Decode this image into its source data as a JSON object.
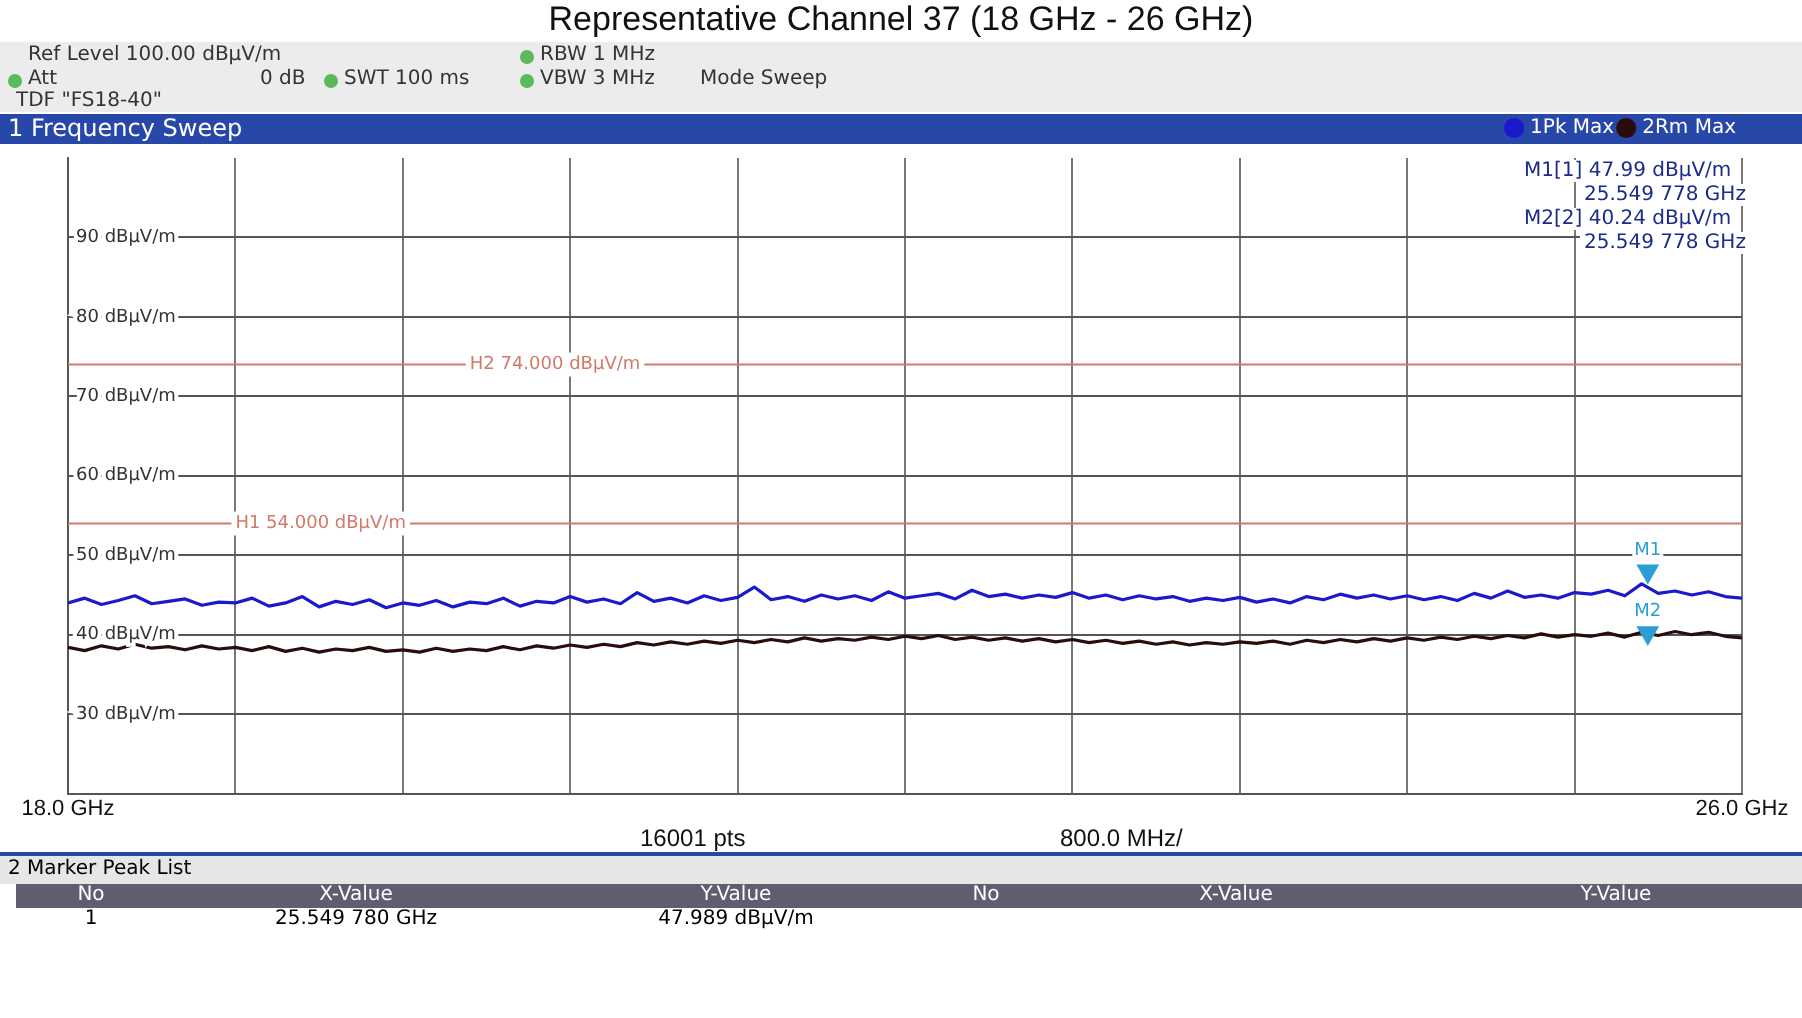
{
  "chart_data": {
    "type": "line",
    "title": "Representative Channel 37 (18 GHz - 26 GHz)",
    "subtitle": "1 Frequency Sweep",
    "x": [
      18,
      18.08,
      18.16,
      18.24,
      18.32,
      18.4,
      18.48,
      18.56,
      18.64,
      18.72,
      18.8,
      18.88,
      18.96,
      19.04,
      19.12,
      19.2,
      19.28,
      19.36,
      19.44,
      19.52,
      19.6,
      19.68,
      19.76,
      19.84,
      19.92,
      20,
      20.08,
      20.16,
      20.24,
      20.32,
      20.4,
      20.48,
      20.56,
      20.64,
      20.72,
      20.8,
      20.88,
      20.96,
      21.04,
      21.12,
      21.2,
      21.28,
      21.36,
      21.44,
      21.52,
      21.6,
      21.68,
      21.76,
      21.84,
      21.92,
      22,
      22.08,
      22.16,
      22.24,
      22.32,
      22.4,
      22.48,
      22.56,
      22.64,
      22.72,
      22.8,
      22.88,
      22.96,
      23.04,
      23.12,
      23.2,
      23.28,
      23.36,
      23.44,
      23.52,
      23.6,
      23.68,
      23.76,
      23.84,
      23.92,
      24,
      24.08,
      24.16,
      24.24,
      24.32,
      24.4,
      24.48,
      24.56,
      24.64,
      24.72,
      24.8,
      24.88,
      24.96,
      25.04,
      25.12,
      25.2,
      25.28,
      25.36,
      25.44,
      25.52,
      25.6,
      25.68,
      25.76,
      25.84,
      25.92,
      26
    ],
    "series": [
      {
        "name": "1Pk Max",
        "color": "#1a1acc",
        "values": [
          44.0,
          44.6,
          43.8,
          44.3,
          44.9,
          43.9,
          44.2,
          44.5,
          43.7,
          44.1,
          44.0,
          44.6,
          43.6,
          44.0,
          44.8,
          43.5,
          44.2,
          43.8,
          44.4,
          43.4,
          44.0,
          43.7,
          44.3,
          43.5,
          44.1,
          43.9,
          44.6,
          43.6,
          44.2,
          44.0,
          44.8,
          44.1,
          44.5,
          43.9,
          45.3,
          44.2,
          44.6,
          44.0,
          44.9,
          44.3,
          44.7,
          46.0,
          44.4,
          44.8,
          44.2,
          45.0,
          44.5,
          44.9,
          44.3,
          45.4,
          44.6,
          44.9,
          45.2,
          44.5,
          45.6,
          44.8,
          45.1,
          44.6,
          45.0,
          44.7,
          45.3,
          44.6,
          45.0,
          44.4,
          44.9,
          44.5,
          44.8,
          44.2,
          44.6,
          44.3,
          44.7,
          44.1,
          44.5,
          44.0,
          44.8,
          44.4,
          45.1,
          44.6,
          45.0,
          44.5,
          44.9,
          44.4,
          44.8,
          44.3,
          45.2,
          44.6,
          45.5,
          44.7,
          45.0,
          44.6,
          45.3,
          45.1,
          45.6,
          44.9,
          46.4,
          45.2,
          45.5,
          45.0,
          45.4,
          44.8,
          44.6
        ]
      },
      {
        "name": "M1",
        "type": "scatter",
        "marker": "triangle",
        "color": "#2a9fd6",
        "x": [
          25.549778
        ],
        "values": [
          47.99
        ]
      },
      {
        "name": "M2",
        "type": "scatter",
        "marker": "triangle",
        "color": "#2a9fd6",
        "x": [
          25.549778
        ],
        "values": [
          40.24
        ]
      },
      {
        "name": "2Rm Max",
        "color": "#2a0c0c",
        "values": [
          38.4,
          38.0,
          38.6,
          38.2,
          38.8,
          38.3,
          38.5,
          38.1,
          38.6,
          38.2,
          38.4,
          38.0,
          38.5,
          37.9,
          38.3,
          37.8,
          38.2,
          38.0,
          38.4,
          37.9,
          38.1,
          37.8,
          38.3,
          37.9,
          38.2,
          38.0,
          38.5,
          38.1,
          38.6,
          38.3,
          38.7,
          38.4,
          38.8,
          38.5,
          39.0,
          38.7,
          39.1,
          38.8,
          39.2,
          38.9,
          39.3,
          39.0,
          39.4,
          39.1,
          39.6,
          39.2,
          39.5,
          39.3,
          39.7,
          39.4,
          39.8,
          39.5,
          39.9,
          39.4,
          39.7,
          39.3,
          39.6,
          39.2,
          39.5,
          39.1,
          39.4,
          39.0,
          39.3,
          38.9,
          39.2,
          38.8,
          39.1,
          38.7,
          39.0,
          38.8,
          39.1,
          38.9,
          39.2,
          38.8,
          39.3,
          39.0,
          39.4,
          39.1,
          39.5,
          39.2,
          39.6,
          39.3,
          39.7,
          39.4,
          39.8,
          39.5,
          39.9,
          39.6,
          40.1,
          39.7,
          40.0,
          39.8,
          40.2,
          39.7,
          40.3,
          39.9,
          40.4,
          40.0,
          40.3,
          39.8,
          39.6
        ]
      }
    ],
    "xlim": [
      18,
      26
    ],
    "xticks": [
      {
        "value": 18,
        "label": "18.0 GHz"
      },
      {
        "value": 18.8,
        "label": null
      },
      {
        "value": 19.6,
        "label": null
      },
      {
        "value": 20.4,
        "label": null
      },
      {
        "value": 21.2,
        "label": null
      },
      {
        "value": 22,
        "label": null
      },
      {
        "value": 22.8,
        "label": null
      },
      {
        "value": 23.6,
        "label": null
      },
      {
        "value": 24.4,
        "label": null
      },
      {
        "value": 25.2,
        "label": null
      },
      {
        "value": 26,
        "label": "26.0 GHz"
      }
    ],
    "ylim": [
      20,
      100
    ],
    "yticks": [
      {
        "value": 30,
        "label": "30 dBµV/m"
      },
      {
        "value": 40,
        "label": "40 dBµV/m"
      },
      {
        "value": 50,
        "label": "50 dBµV/m"
      },
      {
        "value": 60,
        "label": "60 dBµV/m"
      },
      {
        "value": 70,
        "label": "70 dBµV/m"
      },
      {
        "value": 80,
        "label": "80 dBµV/m"
      },
      {
        "value": 90,
        "label": "90 dBµV/m"
      }
    ],
    "ref_lines": [
      {
        "axis": "y",
        "value": 54,
        "label": "H1 54.000 dBµV/m",
        "color": "#d07a6a"
      },
      {
        "axis": "y",
        "value": 74,
        "label": "H2 74.000 dBµV/m",
        "color": "#d07a6a"
      }
    ],
    "annotations": [
      "Ref Level 100.00 dBµV/m",
      "RBW 1 MHz",
      "Att",
      "0 dB",
      "SWT 100 ms",
      "VBW 3 MHz",
      "Mode Sweep",
      "TDF \"FS18-40\"",
      "16001 pts",
      "800.0 MHz/",
      "M1[1]  47.99 dBµV/m",
      "25.549 778 GHz",
      "M2[2]  40.24 dBµV/m",
      "25.549 778 GHz",
      "2 Marker Peak List",
      "No",
      "X-Value",
      "Y-Value",
      "No",
      "X-Value",
      "Y-Value",
      "1",
      "25.549 780 GHz",
      "47.989 dBµV/m"
    ],
    "grid": true,
    "legend": "top right",
    "marker": "none"
  }
}
